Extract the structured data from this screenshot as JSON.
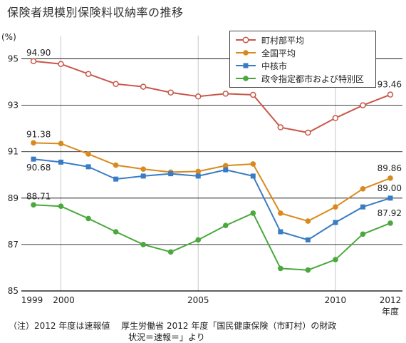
{
  "title": "保険者規模別保険料収納率の推移",
  "notes": [
    "（注）2012 年度は速報値　 厚生労働省 2012 年度「国民健康保険（市町村）の財政",
    "状況＝速報＝」より"
  ],
  "colors": {
    "series": [
      "#c8574a",
      "#d98a1f",
      "#3a7cc4",
      "#4aa83c"
    ],
    "grid": "#000000",
    "vgrid": "#c8c8c8"
  },
  "chart_data": {
    "type": "line",
    "title": "保険者規模別保険料収納率の推移",
    "ylabel": "(%)",
    "xlabel": "年度",
    "ylim": [
      85,
      96
    ],
    "yticks": [
      85,
      87,
      89,
      91,
      93,
      95
    ],
    "x": [
      1999,
      2000,
      2001,
      2002,
      2003,
      2004,
      2005,
      2006,
      2007,
      2008,
      2009,
      2010,
      2011,
      2012
    ],
    "xtick_labels": [
      {
        "x": 1999,
        "label": "1999"
      },
      {
        "x": 2000,
        "label": "2000"
      },
      {
        "x": 2005,
        "label": "2005"
      },
      {
        "x": 2010,
        "label": "2010"
      },
      {
        "x": 2012,
        "label": "2012"
      }
    ],
    "x_unit_label": "年度",
    "vgrid_x": [
      2000,
      2005,
      2010
    ],
    "legend_position": "top-right",
    "series": [
      {
        "name": "町村部平均",
        "marker": "circle-open",
        "values": [
          94.9,
          94.78,
          94.35,
          93.92,
          93.8,
          93.55,
          93.38,
          93.5,
          93.45,
          92.05,
          91.82,
          92.45,
          93.0,
          93.46
        ],
        "labels": [
          {
            "x": 1999,
            "text": "94.90"
          },
          {
            "x": 2012,
            "text": "93.46"
          }
        ]
      },
      {
        "name": "全国平均",
        "marker": "circle",
        "values": [
          91.38,
          91.35,
          90.9,
          90.42,
          90.25,
          90.12,
          90.15,
          90.4,
          90.47,
          88.35,
          88.01,
          88.62,
          89.4,
          89.86
        ],
        "labels": [
          {
            "x": 1999,
            "text": "91.38"
          },
          {
            "x": 2012,
            "text": "89.86"
          }
        ]
      },
      {
        "name": "中核市",
        "marker": "square",
        "values": [
          90.68,
          90.55,
          90.35,
          89.82,
          89.95,
          90.05,
          89.95,
          90.22,
          89.95,
          87.55,
          87.2,
          87.95,
          88.62,
          89.0
        ],
        "labels": [
          {
            "x": 1999,
            "text": "90.68"
          },
          {
            "x": 2012,
            "text": "89.00"
          }
        ]
      },
      {
        "name": "政令指定都市および特別区",
        "marker": "circle",
        "values": [
          88.71,
          88.65,
          88.12,
          87.55,
          87.0,
          86.68,
          87.2,
          87.82,
          88.35,
          85.97,
          85.9,
          86.35,
          87.45,
          87.92
        ],
        "labels": [
          {
            "x": 1999,
            "text": "88.71"
          },
          {
            "x": 2012,
            "text": "87.92"
          }
        ]
      }
    ]
  }
}
